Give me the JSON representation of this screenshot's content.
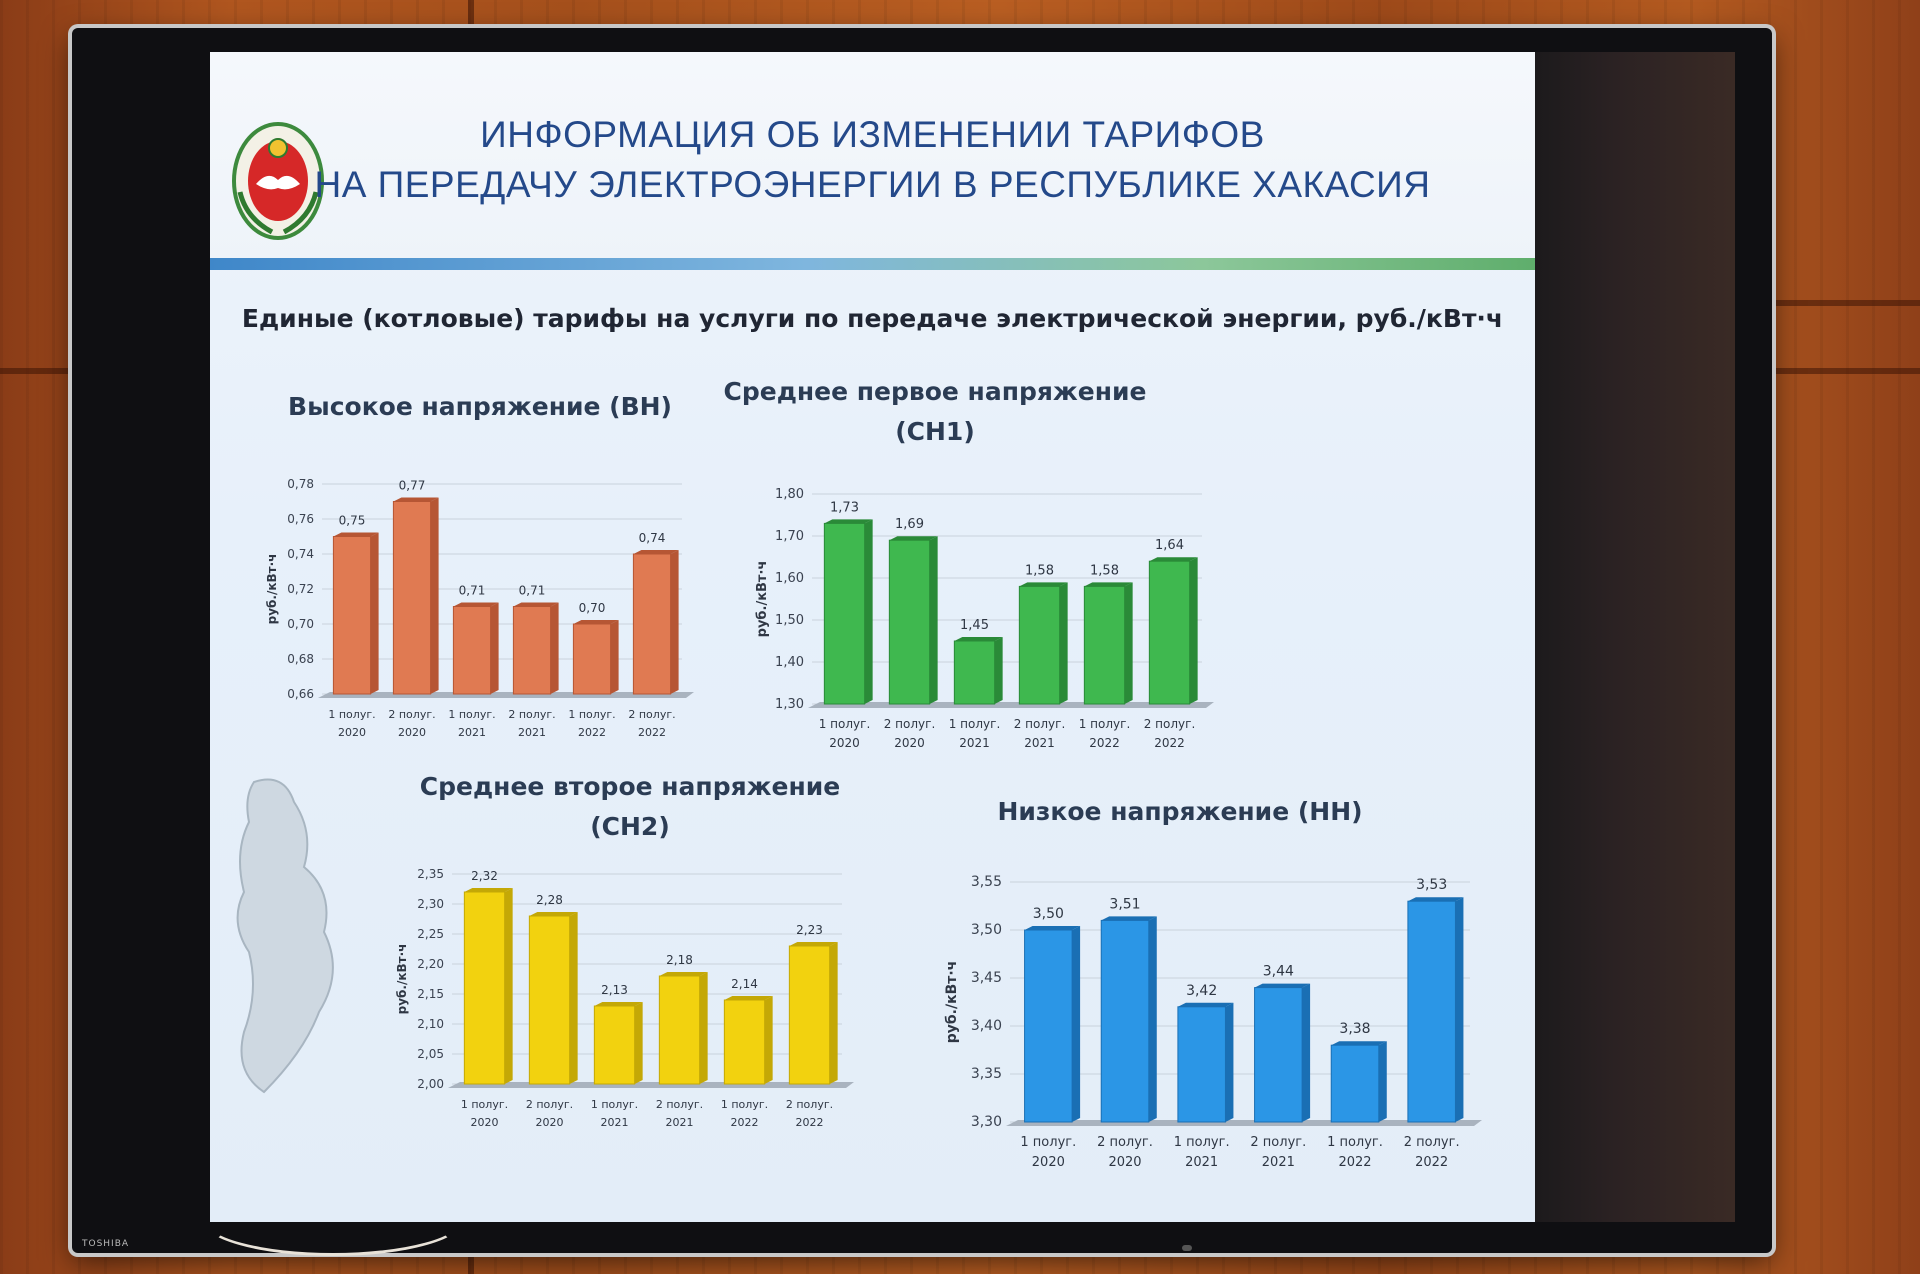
{
  "slide": {
    "title_line1": "ИНФОРМАЦИЯ ОБ ИЗМЕНЕНИИ ТАРИФОВ",
    "title_line2": "НА ПЕРЕДАЧУ ЭЛЕКТРОЭНЕРГИИ  В  РЕСПУБЛИКЕ ХАКАСИЯ",
    "subtitle": "Единые (котловые) тарифы на услуги по передаче электрической энергии, руб./кВт·ч"
  },
  "tv": {
    "brand": "TOSHIBA"
  },
  "chart_data": [
    {
      "type": "bar",
      "title_line1": "Высокое напряжение (ВН)",
      "title_line2": "",
      "ylabel": "руб./кВт·ч",
      "categories": [
        [
          "1 полуг.",
          "2020"
        ],
        [
          "2 полуг.",
          "2020"
        ],
        [
          "1 полуг.",
          "2021"
        ],
        [
          "2 полуг.",
          "2021"
        ],
        [
          "1 полуг.",
          "2022"
        ],
        [
          "2 полуг.",
          "2022"
        ]
      ],
      "values": [
        0.75,
        0.77,
        0.71,
        0.71,
        0.7,
        0.74
      ],
      "value_labels": [
        "0,75",
        "0,77",
        "0,71",
        "0,71",
        "0,70",
        "0,74"
      ],
      "ylim": [
        0.66,
        0.78
      ],
      "ticks": [
        "0,66",
        "0,68",
        "0,70",
        "0,72",
        "0,74",
        "0,76",
        "0,78"
      ],
      "color": "#e07a52",
      "color_side": "#b65634"
    },
    {
      "type": "bar",
      "title_line1": "Среднее первое напряжение",
      "title_line2": "(СН1)",
      "ylabel": "руб./кВт·ч",
      "categories": [
        [
          "1 полуг.",
          "2020"
        ],
        [
          "2 полуг.",
          "2020"
        ],
        [
          "1 полуг.",
          "2021"
        ],
        [
          "2 полуг.",
          "2021"
        ],
        [
          "1 полуг.",
          "2022"
        ],
        [
          "2 полуг.",
          "2022"
        ]
      ],
      "values": [
        1.73,
        1.69,
        1.45,
        1.58,
        1.58,
        1.64
      ],
      "value_labels": [
        "1,73",
        "1,69",
        "1,45",
        "1,58",
        "1,58",
        "1,64"
      ],
      "ylim": [
        1.3,
        1.8
      ],
      "ticks": [
        "1,30",
        "1,40",
        "1,50",
        "1,60",
        "1,70",
        "1,80"
      ],
      "color": "#3fb84f",
      "color_side": "#2a8a38"
    },
    {
      "type": "bar",
      "title_line1": "Среднее второе напряжение",
      "title_line2": "(СН2)",
      "ylabel": "руб./кВт·ч",
      "categories": [
        [
          "1 полуг.",
          "2020"
        ],
        [
          "2 полуг.",
          "2020"
        ],
        [
          "1 полуг.",
          "2021"
        ],
        [
          "2 полуг.",
          "2021"
        ],
        [
          "1 полуг.",
          "2022"
        ],
        [
          "2 полуг.",
          "2022"
        ]
      ],
      "values": [
        2.32,
        2.28,
        2.13,
        2.18,
        2.14,
        2.23
      ],
      "value_labels": [
        "2,32",
        "2,28",
        "2,13",
        "2,18",
        "2,14",
        "2,23"
      ],
      "ylim": [
        2.0,
        2.35
      ],
      "ticks": [
        "2,00",
        "2,05",
        "2,10",
        "2,15",
        "2,20",
        "2,25",
        "2,30",
        "2,35"
      ],
      "color": "#f2d20f",
      "color_side": "#c4a806"
    },
    {
      "type": "bar",
      "title_line1": "Низкое напряжение (НН)",
      "title_line2": "",
      "ylabel": "руб./кВт·ч",
      "categories": [
        [
          "1 полуг.",
          "2020"
        ],
        [
          "2 полуг.",
          "2020"
        ],
        [
          "1 полуг.",
          "2021"
        ],
        [
          "2 полуг.",
          "2021"
        ],
        [
          "1 полуг.",
          "2022"
        ],
        [
          "2 полуг.",
          "2022"
        ]
      ],
      "values": [
        3.5,
        3.51,
        3.42,
        3.44,
        3.38,
        3.53
      ],
      "value_labels": [
        "3,50",
        "3,51",
        "3,42",
        "3,44",
        "3,38",
        "3,53"
      ],
      "ylim": [
        3.3,
        3.55
      ],
      "ticks": [
        "3,30",
        "3,35",
        "3,40",
        "3,45",
        "3,50",
        "3,55"
      ],
      "color": "#2b96e6",
      "color_side": "#1a6fb4"
    }
  ]
}
